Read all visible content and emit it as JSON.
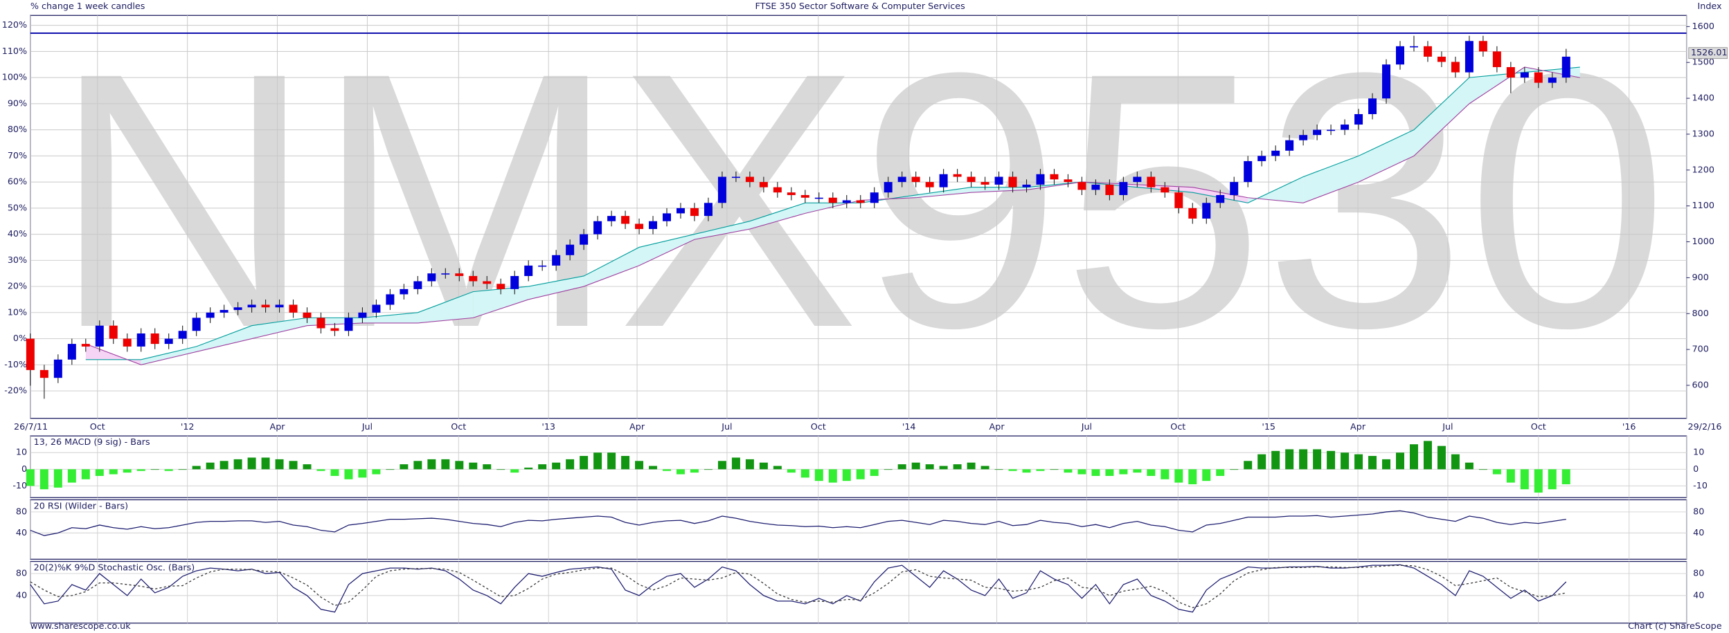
{
  "chart_data": {
    "type": "candlestick",
    "title": "FTSE 350 Sector Software & Computer Services",
    "subtitle": "% change 1 week candles",
    "y2_label": "Index",
    "watermark": "NMX9530",
    "footer_left": "www.sharescope.co.uk",
    "footer_right": "Chart (c) ShareScope",
    "up_color": "#0000dd",
    "down_color": "#ee0000",
    "grid": true,
    "xlim": [
      0,
      239.4
    ],
    "xticks": [
      {
        "value": 0,
        "label": "26/7/11"
      },
      {
        "value": 9.7,
        "label": "Oct"
      },
      {
        "value": 22.7,
        "label": "'12"
      },
      {
        "value": 35.7,
        "label": "Apr"
      },
      {
        "value": 48.7,
        "label": "Jul"
      },
      {
        "value": 61.9,
        "label": "Oct"
      },
      {
        "value": 74.9,
        "label": "'13"
      },
      {
        "value": 87.7,
        "label": "Apr"
      },
      {
        "value": 100.7,
        "label": "Jul"
      },
      {
        "value": 113.9,
        "label": "Oct"
      },
      {
        "value": 127,
        "label": "'14"
      },
      {
        "value": 139.7,
        "label": "Apr"
      },
      {
        "value": 152.7,
        "label": "Jul"
      },
      {
        "value": 165.9,
        "label": "Oct"
      },
      {
        "value": 179,
        "label": "'15"
      },
      {
        "value": 191.9,
        "label": "Apr"
      },
      {
        "value": 204.9,
        "label": "Jul"
      },
      {
        "value": 218,
        "label": "Oct"
      },
      {
        "value": 231.1,
        "label": "'16"
      },
      {
        "value": 239.4,
        "label": "29/2/16"
      }
    ],
    "ylim": [
      -30.5,
      123.8
    ],
    "yticks": [
      {
        "value": -20,
        "label": "-20%"
      },
      {
        "value": -10,
        "label": "-10%"
      },
      {
        "value": 0,
        "label": "0%"
      },
      {
        "value": 10,
        "label": "10%"
      },
      {
        "value": 20,
        "label": "20%"
      },
      {
        "value": 30,
        "label": "30%"
      },
      {
        "value": 40,
        "label": "40%"
      },
      {
        "value": 50,
        "label": "50%"
      },
      {
        "value": 60,
        "label": "60%"
      },
      {
        "value": 70,
        "label": "70%"
      },
      {
        "value": 80,
        "label": "80%"
      },
      {
        "value": 90,
        "label": "90%"
      },
      {
        "value": 100,
        "label": "100%"
      },
      {
        "value": 110,
        "label": "110%"
      },
      {
        "value": 120,
        "label": "120%"
      }
    ],
    "y2lim": [
      508,
      1631
    ],
    "y2ticks": [
      600,
      700,
      800,
      900,
      1000,
      1100,
      1200,
      1300,
      1400,
      1500,
      1600
    ],
    "reference_line": 117,
    "reference_color": "#0000aa",
    "last_value": 1526.01,
    "x": [
      0,
      2,
      4,
      6,
      8,
      10,
      12,
      14,
      16,
      18,
      20,
      22,
      24,
      26,
      28,
      30,
      32,
      34,
      36,
      38,
      40,
      42,
      44,
      46,
      48,
      50,
      52,
      54,
      56,
      58,
      60,
      62,
      64,
      66,
      68,
      70,
      72,
      74,
      76,
      78,
      80,
      82,
      84,
      86,
      88,
      90,
      92,
      94,
      96,
      98,
      100,
      102,
      104,
      106,
      108,
      110,
      112,
      114,
      116,
      118,
      120,
      122,
      124,
      126,
      128,
      130,
      132,
      134,
      136,
      138,
      140,
      142,
      144,
      146,
      148,
      150,
      152,
      154,
      156,
      158,
      160,
      162,
      164,
      166,
      168,
      170,
      172,
      174,
      176,
      178,
      180,
      182,
      184,
      186,
      188,
      190,
      192,
      194,
      196,
      198,
      200,
      202,
      204,
      206,
      208,
      210,
      212,
      214,
      216,
      218,
      220,
      222
    ],
    "candles": {
      "open": [
        0,
        -12,
        -15,
        -8,
        -2,
        -3,
        5,
        0,
        -3,
        2,
        -2,
        0,
        3,
        8,
        10,
        11,
        12,
        13,
        12,
        13,
        10,
        8,
        4,
        3,
        8,
        10,
        13,
        17,
        19,
        22,
        25,
        25,
        24,
        22,
        21,
        19,
        24,
        28,
        28,
        32,
        36,
        40,
        45,
        47,
        44,
        42,
        45,
        48,
        50,
        47,
        52,
        62,
        62,
        60,
        58,
        56,
        55,
        54,
        54,
        52,
        53,
        52,
        56,
        60,
        62,
        60,
        58,
        63,
        62,
        60,
        59,
        62,
        58,
        59,
        63,
        61,
        60,
        57,
        59,
        55,
        60,
        62,
        58,
        56,
        50,
        46,
        52,
        55,
        60,
        68,
        70,
        72,
        76,
        78,
        80,
        80,
        82,
        86,
        92,
        105,
        112,
        112,
        108,
        106,
        102,
        114,
        110,
        104,
        100,
        102,
        98,
        100
      ],
      "high": [
        2,
        -10,
        -6,
        0,
        0,
        7,
        7,
        2,
        4,
        4,
        2,
        5,
        10,
        12,
        13,
        14,
        15,
        15,
        15,
        15,
        12,
        10,
        6,
        10,
        12,
        15,
        19,
        21,
        24,
        27,
        27,
        27,
        26,
        24,
        23,
        26,
        30,
        30,
        34,
        38,
        42,
        47,
        49,
        49,
        46,
        47,
        50,
        52,
        52,
        54,
        64,
        64,
        64,
        62,
        60,
        58,
        57,
        56,
        56,
        55,
        55,
        58,
        62,
        64,
        64,
        62,
        65,
        65,
        64,
        62,
        64,
        64,
        61,
        65,
        65,
        63,
        62,
        61,
        61,
        62,
        64,
        64,
        60,
        58,
        52,
        54,
        57,
        62,
        70,
        72,
        74,
        78,
        80,
        82,
        82,
        84,
        88,
        94,
        107,
        114,
        116,
        114,
        110,
        108,
        116,
        116,
        112,
        106,
        104,
        104,
        102,
        111
      ],
      "low": [
        -18,
        -23,
        -17,
        -10,
        -5,
        -5,
        -2,
        -5,
        -5,
        -4,
        -4,
        -2,
        1,
        6,
        8,
        9,
        10,
        10,
        10,
        8,
        6,
        2,
        1,
        1,
        6,
        8,
        11,
        15,
        17,
        20,
        23,
        22,
        20,
        19,
        17,
        17,
        22,
        26,
        26,
        30,
        34,
        38,
        43,
        42,
        40,
        40,
        43,
        46,
        45,
        45,
        50,
        60,
        58,
        56,
        54,
        53,
        52,
        52,
        50,
        50,
        50,
        50,
        54,
        58,
        58,
        56,
        56,
        60,
        58,
        57,
        57,
        56,
        56,
        57,
        59,
        58,
        55,
        55,
        53,
        53,
        58,
        56,
        54,
        48,
        44,
        44,
        50,
        53,
        58,
        66,
        68,
        70,
        74,
        76,
        78,
        78,
        80,
        84,
        90,
        103,
        110,
        106,
        104,
        100,
        100,
        108,
        102,
        94,
        98,
        96,
        96,
        98
      ],
      "close": [
        -12,
        -15,
        -8,
        -2,
        -3,
        5,
        0,
        -3,
        2,
        -2,
        0,
        3,
        8,
        10,
        11,
        12,
        13,
        12,
        13,
        10,
        8,
        4,
        3,
        8,
        10,
        13,
        17,
        19,
        22,
        25,
        25,
        24,
        22,
        21,
        19,
        24,
        28,
        28,
        32,
        36,
        40,
        45,
        47,
        44,
        42,
        45,
        48,
        50,
        47,
        52,
        62,
        62,
        60,
        58,
        56,
        55,
        54,
        54,
        52,
        53,
        52,
        56,
        60,
        62,
        60,
        58,
        63,
        62,
        60,
        59,
        62,
        58,
        59,
        63,
        61,
        60,
        57,
        59,
        55,
        60,
        62,
        58,
        56,
        50,
        46,
        52,
        55,
        60,
        68,
        70,
        72,
        76,
        78,
        80,
        80,
        82,
        86,
        92,
        105,
        112,
        112,
        108,
        106,
        102,
        114,
        110,
        104,
        100,
        102,
        98,
        100,
        108
      ]
    },
    "cloud": {
      "x": [
        8,
        16,
        24,
        32,
        40,
        48,
        56,
        64,
        72,
        80,
        88,
        96,
        104,
        112,
        120,
        128,
        136,
        144,
        152,
        160,
        168,
        176,
        184,
        192,
        200,
        208,
        216,
        224
      ],
      "span_a": [
        -8,
        -8,
        -3,
        5,
        8,
        8,
        10,
        18,
        20,
        24,
        35,
        40,
        45,
        52,
        52,
        55,
        58,
        58,
        60,
        58,
        56,
        52,
        62,
        70,
        80,
        100,
        102,
        104
      ],
      "span_b": [
        -2,
        -10,
        -5,
        0,
        5,
        6,
        6,
        8,
        15,
        20,
        28,
        38,
        42,
        48,
        53,
        54,
        56,
        57,
        60,
        59,
        58,
        54,
        52,
        60,
        70,
        90,
        104,
        100
      ],
      "color_a": "#009c9c",
      "color_b": "#a040a0",
      "fill_up": "#d4f6f6",
      "fill_down": "#f6d4f6"
    },
    "panels": [
      {
        "type": "bar",
        "title": "13, 26 MACD (9 sig) - Bars",
        "ylim": [
          -17,
          20
        ],
        "yticks": [
          10,
          0,
          -10
        ],
        "pos_color": "#129612",
        "neg_color": "#33ee33",
        "values": [
          -10,
          -12,
          -11,
          -8,
          -6,
          -4,
          -3,
          -2,
          -1,
          0,
          -1,
          0,
          2,
          4,
          5,
          6,
          7,
          7,
          6,
          5,
          3,
          -1,
          -4,
          -6,
          -5,
          -3,
          0,
          3,
          5,
          6,
          6,
          5,
          4,
          3,
          0,
          -2,
          1,
          3,
          4,
          6,
          8,
          10,
          10,
          8,
          5,
          2,
          -1,
          -3,
          -2,
          0,
          5,
          7,
          6,
          4,
          2,
          -2,
          -5,
          -7,
          -8,
          -7,
          -6,
          -4,
          0,
          3,
          4,
          3,
          2,
          3,
          4,
          2,
          0,
          -1,
          -2,
          -1,
          0,
          -2,
          -3,
          -4,
          -4,
          -3,
          -2,
          -4,
          -6,
          -8,
          -9,
          -7,
          -4,
          0,
          5,
          9,
          11,
          12,
          12,
          12,
          11,
          10,
          9,
          8,
          6,
          10,
          15,
          17,
          14,
          9,
          4,
          0,
          -3,
          -8,
          -12,
          -14,
          -12,
          -9
        ]
      },
      {
        "type": "line",
        "title": "20 RSI (Wilder - Bars)",
        "ylim": [
          -10,
          103
        ],
        "yticks": [
          80,
          40
        ],
        "series": [
          {
            "color": "#1c1c70",
            "values": [
              45,
              35,
              40,
              50,
              48,
              55,
              50,
              47,
              52,
              48,
              50,
              55,
              60,
              62,
              62,
              63,
              63,
              60,
              62,
              55,
              52,
              45,
              42,
              55,
              58,
              62,
              66,
              66,
              67,
              68,
              66,
              62,
              58,
              56,
              52,
              60,
              64,
              63,
              66,
              68,
              70,
              72,
              70,
              60,
              55,
              60,
              63,
              64,
              58,
              63,
              72,
              68,
              62,
              58,
              55,
              54,
              52,
              53,
              50,
              52,
              50,
              56,
              62,
              64,
              60,
              56,
              64,
              62,
              58,
              56,
              62,
              54,
              56,
              64,
              60,
              58,
              52,
              56,
              50,
              58,
              62,
              55,
              52,
              45,
              42,
              55,
              58,
              64,
              70,
              70,
              70,
              72,
              72,
              73,
              70,
              72,
              74,
              76,
              80,
              82,
              78,
              70,
              66,
              62,
              72,
              68,
              60,
              56,
              60,
              58,
              62,
              66
            ]
          }
        ]
      },
      {
        "type": "line",
        "title": "20(2)%K 9%D Stochastic Osc. (Bars)",
        "ylim": [
          -10,
          102
        ],
        "yticks": [
          80,
          40
        ],
        "series": [
          {
            "color": "#1c1c70",
            "values": [
              60,
              25,
              30,
              60,
              50,
              80,
              60,
              40,
              70,
              45,
              55,
              75,
              85,
              90,
              88,
              85,
              88,
              80,
              82,
              55,
              40,
              15,
              10,
              60,
              80,
              85,
              90,
              90,
              88,
              90,
              85,
              70,
              50,
              40,
              25,
              55,
              80,
              75,
              82,
              88,
              90,
              92,
              88,
              50,
              40,
              60,
              75,
              80,
              55,
              70,
              92,
              85,
              60,
              40,
              30,
              30,
              25,
              35,
              25,
              40,
              30,
              65,
              90,
              95,
              75,
              55,
              85,
              70,
              50,
              40,
              70,
              35,
              45,
              85,
              70,
              60,
              35,
              60,
              25,
              60,
              70,
              40,
              30,
              15,
              10,
              50,
              70,
              80,
              92,
              90,
              90,
              92,
              92,
              93,
              90,
              90,
              92,
              95,
              95,
              96,
              90,
              75,
              60,
              40,
              85,
              75,
              55,
              35,
              50,
              30,
              40,
              65
            ]
          },
          {
            "color": "#333333",
            "dashed": true,
            "values": [
              65,
              50,
              38,
              40,
              47,
              63,
              63,
              60,
              57,
              52,
              57,
              58,
              72,
              83,
              88,
              88,
              87,
              84,
              83,
              72,
              59,
              37,
              22,
              28,
              50,
              75,
              85,
              88,
              89,
              89,
              88,
              82,
              68,
              53,
              38,
              40,
              53,
              70,
              79,
              82,
              87,
              90,
              90,
              77,
              60,
              50,
              58,
              72,
              70,
              68,
              72,
              82,
              79,
              62,
              43,
              33,
              28,
              30,
              28,
              33,
              32,
              45,
              62,
              83,
              87,
              75,
              72,
              70,
              68,
              55,
              53,
              48,
              50,
              55,
              67,
              72,
              55,
              52,
              40,
              48,
              52,
              57,
              47,
              28,
              18,
              25,
              43,
              67,
              81,
              87,
              91,
              91,
              91,
              92,
              92,
              91,
              91,
              92,
              94,
              95,
              94,
              87,
              75,
              58,
              62,
              67,
              72,
              55,
              47,
              38,
              40,
              45
            ]
          }
        ]
      }
    ]
  }
}
